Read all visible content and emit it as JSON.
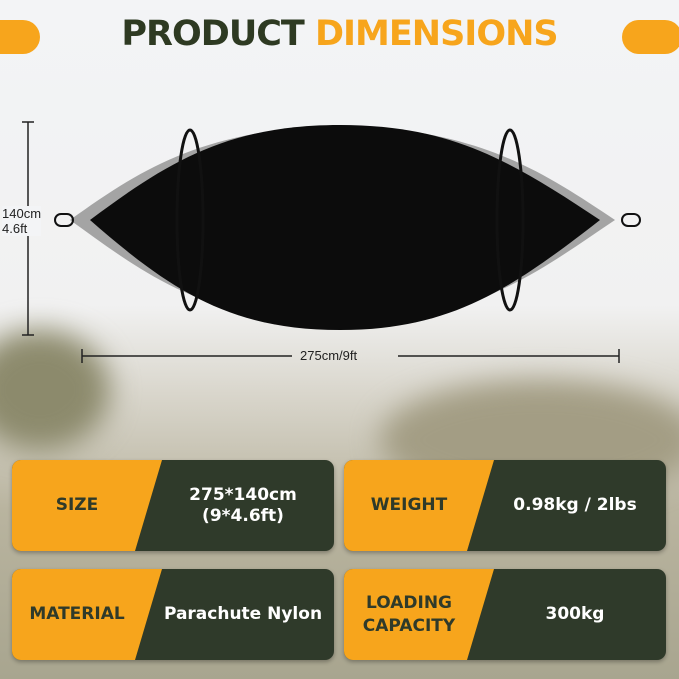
{
  "header": {
    "title_part1": "PRODUCT",
    "title_part2": "DIMENSIONS"
  },
  "dimensions": {
    "height": "140cm",
    "height_ft": "4.6ft",
    "length": "275cm/9ft"
  },
  "specs": [
    {
      "label": "SIZE",
      "value": "275*140cm",
      "value2": "(9*4.6ft)"
    },
    {
      "label": "WEIGHT",
      "value": "0.98kg / 2lbs"
    },
    {
      "label": "MATERIAL",
      "value": "Parachute Nylon"
    },
    {
      "label": "LOADING",
      "label2": "CAPACITY",
      "value": "300kg"
    }
  ],
  "colors": {
    "accent": "#f7a51c",
    "dark": "#2f3a2a"
  }
}
